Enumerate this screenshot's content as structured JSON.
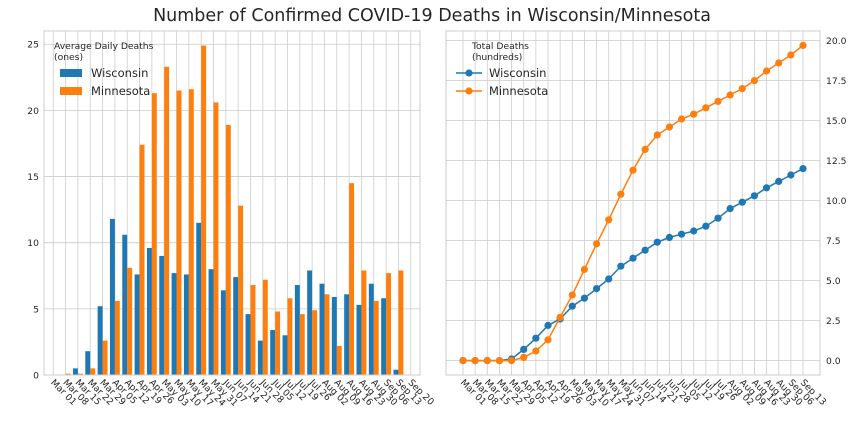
{
  "title": "Number of Confirmed COVID-19 Deaths in Wisconsin/Minnesota",
  "colors": {
    "wisconsin": "#1f77b4",
    "minnesota": "#ff7f0e",
    "grid": "#cccccc",
    "axes": "#cccccc"
  },
  "chart_data": [
    {
      "type": "bar",
      "legend_title": "Average Daily Deaths\n(ones)",
      "legend_position": "top-left",
      "grid": true,
      "ylim": [
        0,
        26
      ],
      "yticks": [
        0,
        5,
        10,
        15,
        20,
        25
      ],
      "ytick_labels": [
        "0",
        "5",
        "10",
        "15",
        "20",
        "25"
      ],
      "categories": [
        "Mar 01",
        "Mar 08",
        "Mar 15",
        "Mar 22",
        "Mar 29",
        "Apr 05",
        "Apr 12",
        "Apr 19",
        "Apr 26",
        "May 03",
        "May 10",
        "May 17",
        "May 24",
        "May 31",
        "Jun 07",
        "Jun 14",
        "Jun 21",
        "Jun 28",
        "Jul 05",
        "Jul 12",
        "Jul 19",
        "Jul 26",
        "Aug 02",
        "Aug 09",
        "Aug 16",
        "Aug 23",
        "Aug 30",
        "Sep 06",
        "Sep 13",
        "Sep 20"
      ],
      "series": [
        {
          "name": "Wisconsin",
          "values": [
            0,
            0,
            0.5,
            1.8,
            5.2,
            11.8,
            10.6,
            7.6,
            9.6,
            9.0,
            7.7,
            7.6,
            11.5,
            8.0,
            6.4,
            7.4,
            4.6,
            2.6,
            3.4,
            3.0,
            6.8,
            7.9,
            6.9,
            5.9,
            6.1,
            5.3,
            6.9,
            5.8,
            0.4,
            0
          ]
        },
        {
          "name": "Minnesota",
          "values": [
            0,
            0.1,
            0.1,
            0.5,
            2.6,
            5.6,
            8.1,
            17.4,
            21.3,
            23.3,
            21.5,
            21.6,
            24.9,
            20.6,
            18.9,
            12.8,
            6.8,
            7.2,
            4.8,
            5.8,
            4.6,
            4.9,
            6.1,
            2.2,
            14.5,
            7.9,
            5.6,
            7.7,
            7.9,
            0
          ]
        }
      ]
    },
    {
      "type": "line",
      "legend_title": "Total Deaths\n(hundreds)",
      "legend_position": "top-left",
      "grid": true,
      "y_axis_side": "right",
      "ylim": [
        -0.9,
        20.6
      ],
      "yticks": [
        0,
        2.5,
        5,
        7.5,
        10,
        12.5,
        15,
        17.5,
        20
      ],
      "ytick_labels": [
        "0.0",
        "2.5",
        "5.0",
        "7.5",
        "10.0",
        "12.5",
        "15.0",
        "17.5",
        "20.0"
      ],
      "x": [
        "Mar 01",
        "Mar 08",
        "Mar 15",
        "Mar 22",
        "Mar 29",
        "Apr 05",
        "Apr 12",
        "Apr 19",
        "Apr 26",
        "May 03",
        "May 10",
        "May 17",
        "May 24",
        "May 31",
        "Jun 07",
        "Jun 14",
        "Jun 21",
        "Jun 28",
        "Jul 05",
        "Jul 12",
        "Jul 19",
        "Jul 26",
        "Aug 02",
        "Aug 09",
        "Aug 16",
        "Aug 23",
        "Aug 30",
        "Sep 06",
        "Sep 13"
      ],
      "series": [
        {
          "name": "Wisconsin",
          "values": [
            0,
            0,
            0,
            0,
            0.1,
            0.7,
            1.4,
            2.2,
            2.6,
            3.4,
            3.9,
            4.5,
            5.1,
            5.9,
            6.4,
            6.9,
            7.4,
            7.7,
            7.9,
            8.1,
            8.4,
            8.9,
            9.5,
            9.9,
            10.3,
            10.8,
            11.2,
            11.6,
            12.0
          ]
        },
        {
          "name": "Minnesota",
          "values": [
            0,
            0,
            0,
            0,
            0,
            0.2,
            0.6,
            1.3,
            2.7,
            4.1,
            5.7,
            7.3,
            8.8,
            10.4,
            11.9,
            13.2,
            14.1,
            14.6,
            15.1,
            15.4,
            15.8,
            16.2,
            16.6,
            17.0,
            17.5,
            18.1,
            18.6,
            19.1,
            19.7
          ]
        }
      ]
    }
  ]
}
